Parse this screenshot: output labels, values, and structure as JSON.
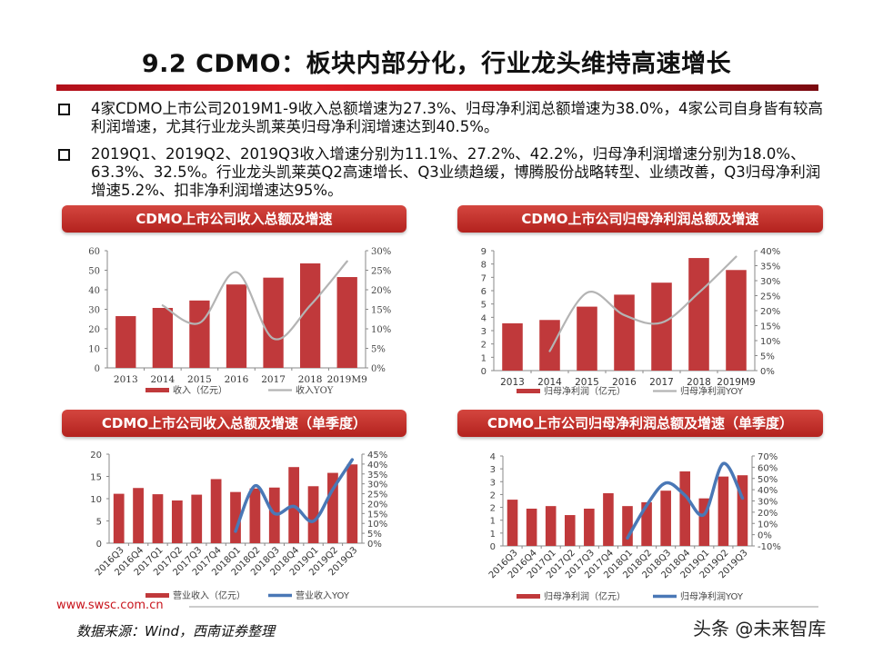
{
  "title": "9.2 CDMO：板块内部分化，行业龙头维持高速增长",
  "bullets": [
    "4家CDMO上市公司2019M1-9收入总额增速为27.3%、归母净利润总额增速为38.0%，4家公司自身皆有较高利润增速，尤其行业龙头凯莱英归母净利润增速达到40.5%。",
    "2019Q1、2019Q2、2019Q3收入增速分别为11.1%、27.2%、42.2%，归母净利润增速分别为18.0%、63.3%、32.5%。行业龙头凯莱英Q2高速增长、Q3业绩趋缓，博腾股份战略转型、业绩改善，Q3归母净利润增速5.2%、扣非净利润增速达95%。"
  ],
  "panels": [
    "CDMO上市公司收入总额及增速",
    "CDMO上市公司归母净利润总额及增速",
    "CDMO上市公司收入总额及增速（单季度）",
    "CDMO上市公司归母净利润总额及增速（单季度）"
  ],
  "colors": {
    "bar": "#c0393b",
    "line_annual": "#b4b4b4",
    "line_quarterly": "#4a78b6",
    "accent": "#c8141c"
  },
  "chart_data": [
    {
      "type": "bar+line",
      "categories": [
        "2013",
        "2014",
        "2015",
        "2016",
        "2017",
        "2018",
        "2019M9"
      ],
      "series": [
        {
          "name": "收入（亿元）",
          "type": "bar",
          "axis": "left",
          "values": [
            26.5,
            30.7,
            34.5,
            42.7,
            46.2,
            53.5,
            46.5
          ]
        },
        {
          "name": "收入YOY",
          "type": "line",
          "axis": "right",
          "values": [
            null,
            16,
            11.5,
            24.5,
            7.5,
            16,
            27.3
          ]
        }
      ],
      "ylim_left": [
        0,
        60
      ],
      "yticks_left": [
        "0",
        "10",
        "20",
        "30",
        "40",
        "50",
        "60"
      ],
      "ylim_right": [
        0,
        30
      ],
      "yticks_right": [
        "0%",
        "5%",
        "10%",
        "15%",
        "20%",
        "25%",
        "30%"
      ],
      "grid": false,
      "legend": "bottom"
    },
    {
      "type": "bar+line",
      "categories": [
        "2013",
        "2014",
        "2015",
        "2016",
        "2017",
        "2018",
        "2019M9"
      ],
      "series": [
        {
          "name": "归母净利润（亿元）",
          "type": "bar",
          "axis": "left",
          "values": [
            3.55,
            3.8,
            4.8,
            5.7,
            6.6,
            8.45,
            7.55
          ]
        },
        {
          "name": "归母净利润YOY",
          "type": "line",
          "axis": "right",
          "values": [
            null,
            6.5,
            26,
            18.5,
            16,
            26,
            38
          ]
        }
      ],
      "ylim_left": [
        0,
        9
      ],
      "yticks_left": [
        "0",
        "1",
        "2",
        "3",
        "4",
        "5",
        "6",
        "7",
        "8",
        "9"
      ],
      "ylim_right": [
        0,
        40
      ],
      "yticks_right": [
        "0%",
        "5%",
        "10%",
        "15%",
        "20%",
        "25%",
        "30%",
        "35%",
        "40%"
      ],
      "grid": false,
      "legend": "bottom"
    },
    {
      "type": "bar+line",
      "categories": [
        "2016Q3",
        "2016Q4",
        "2017Q1",
        "2017Q2",
        "2017Q3",
        "2017Q4",
        "2018Q1",
        "2018Q2",
        "2018Q3",
        "2018Q4",
        "2019Q1",
        "2019Q2",
        "2019Q3"
      ],
      "series": [
        {
          "name": "营业收入（亿元）",
          "type": "bar",
          "axis": "left",
          "values": [
            11.1,
            12.4,
            11.0,
            9.6,
            10.9,
            14.4,
            11.5,
            12.3,
            12.5,
            17.1,
            12.8,
            15.8,
            17.7
          ]
        },
        {
          "name": "营业收入YOY",
          "type": "line",
          "axis": "right",
          "values": [
            null,
            null,
            null,
            null,
            null,
            null,
            6,
            29,
            15,
            18.6,
            11.1,
            27.2,
            42.2
          ]
        }
      ],
      "ylim_left": [
        0,
        20
      ],
      "yticks_left": [
        "0",
        "5",
        "10",
        "15",
        "20"
      ],
      "ylim_right": [
        0,
        45
      ],
      "yticks_right": [
        "0%",
        "5%",
        "10%",
        "15%",
        "20%",
        "25%",
        "30%",
        "35%",
        "40%",
        "45%"
      ],
      "grid": false,
      "legend": "bottom"
    },
    {
      "type": "bar+line",
      "categories": [
        "2016Q3",
        "2016Q4",
        "2017Q1",
        "2017Q2",
        "2017Q3",
        "2017Q4",
        "2018Q1",
        "2018Q2",
        "2018Q3",
        "2018Q4",
        "2019Q1",
        "2019Q2",
        "2019Q3"
      ],
      "series": [
        {
          "name": "归母净利润（亿元）",
          "type": "bar",
          "axis": "left",
          "values": [
            1.8,
            1.45,
            1.55,
            1.2,
            1.45,
            2.05,
            1.55,
            1.7,
            2.15,
            2.9,
            1.85,
            2.7,
            2.75
          ]
        },
        {
          "name": "归母净利润YOY",
          "type": "line",
          "axis": "right",
          "values": [
            null,
            null,
            null,
            null,
            null,
            null,
            -3,
            26,
            46,
            35,
            18,
            63.3,
            32.5
          ]
        }
      ],
      "ylim_left": [
        0,
        3.5
      ],
      "yticks_left": [
        "0",
        "1",
        "1",
        "2",
        "2",
        "3",
        "3",
        "4"
      ],
      "ylim_right": [
        -10,
        70
      ],
      "yticks_right": [
        "-10%",
        "0%",
        "10%",
        "20%",
        "30%",
        "40%",
        "50%",
        "60%",
        "70%"
      ],
      "grid": false,
      "legend": "bottom"
    }
  ],
  "footer": {
    "site": "www.swsc.com.cn",
    "source": "数据来源：Wind，西南证券整理",
    "watermark": "头条 @未来智库"
  }
}
